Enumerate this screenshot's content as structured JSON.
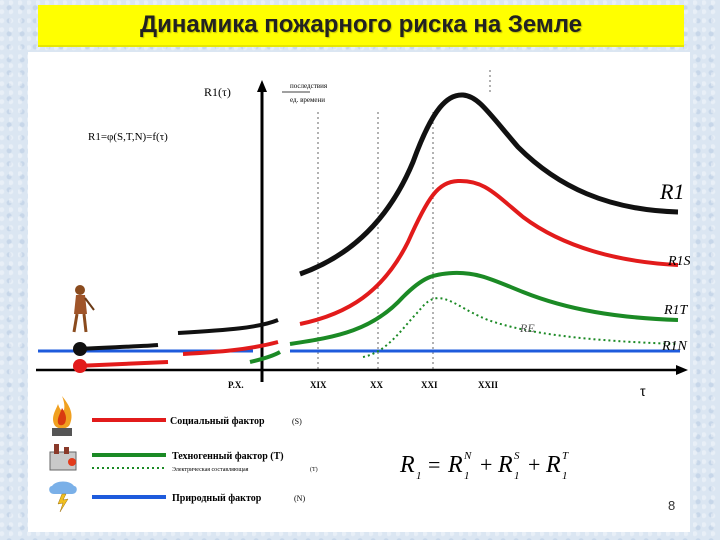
{
  "title": "Динамика пожарного риска на Земле",
  "diagram": {
    "y_axis_label": "R1(τ)",
    "y_axis_fraction_num": "последствия",
    "y_axis_fraction_den": "ед. времени",
    "risk_formula_left": "R1=φ(S,T,N)=f(τ)",
    "x_axis_label": "τ",
    "x_ticks": [
      "P.X.",
      "XIX",
      "XX",
      "XXI",
      "XXII"
    ],
    "curve_labels": {
      "total": "R1",
      "social": "R1S",
      "technogenic": "R1T",
      "electric": "RE",
      "natural": "R1N"
    },
    "legend": [
      {
        "label": "Социальный фактор",
        "code": "(S)",
        "color": "#e21b1b",
        "dashed": false
      },
      {
        "label": "Техногенный фактор (T)",
        "code": "",
        "color": "#1b8a25",
        "dashed": false
      },
      {
        "label": "Электрическая составляющая",
        "code": "(T)",
        "color": "#1b8a25",
        "dashed": true
      },
      {
        "label": "Природный фактор",
        "code": "(N)",
        "color": "#1e5bdc",
        "dashed": false
      }
    ],
    "sum_formula": {
      "lhs": "R",
      "t1_sup": "N",
      "t2_sup": "S",
      "t3_sup": "T",
      "sub": "1"
    },
    "page_number": "8",
    "colors": {
      "total": "#111111",
      "social": "#e21b1b",
      "technogenic": "#1b8a25",
      "natural": "#1e5bdc",
      "title_bg": "#ffff00"
    }
  }
}
